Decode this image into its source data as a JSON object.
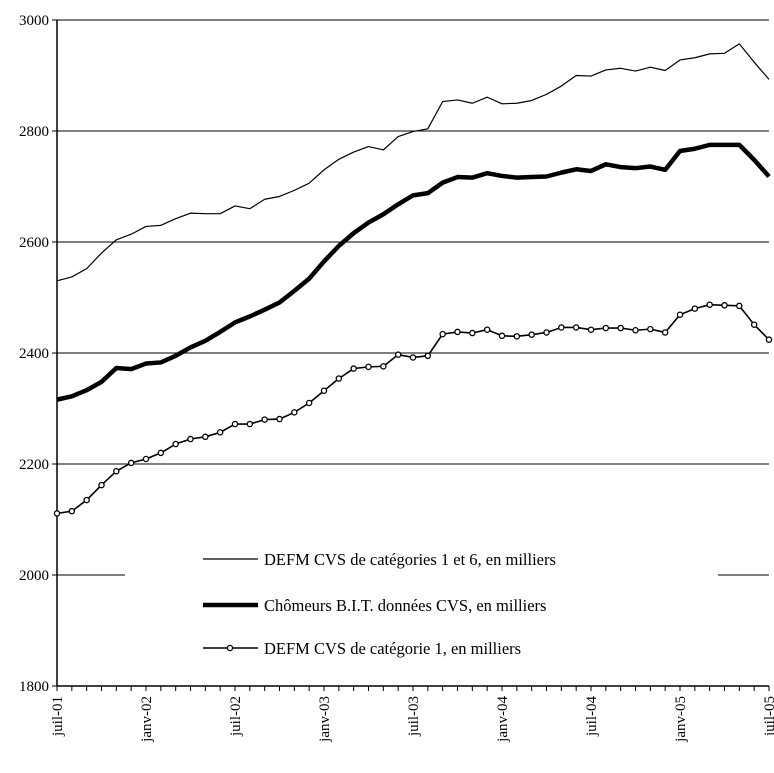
{
  "chart_data": {
    "type": "line",
    "title": "",
    "xlabel": "",
    "ylabel": "",
    "ylim": [
      1800,
      3000
    ],
    "yticks": [
      1800,
      2000,
      2200,
      2400,
      2600,
      2800,
      3000
    ],
    "grid": "horizontal",
    "legend_position": "lower-center",
    "x": [
      "2001-07",
      "2001-08",
      "2001-09",
      "2001-10",
      "2001-11",
      "2001-12",
      "2002-01",
      "2002-02",
      "2002-03",
      "2002-04",
      "2002-05",
      "2002-06",
      "2002-07",
      "2002-08",
      "2002-09",
      "2002-10",
      "2002-11",
      "2002-12",
      "2003-01",
      "2003-02",
      "2003-03",
      "2003-04",
      "2003-05",
      "2003-06",
      "2003-07",
      "2003-08",
      "2003-09",
      "2003-10",
      "2003-11",
      "2003-12",
      "2004-01",
      "2004-02",
      "2004-03",
      "2004-04",
      "2004-05",
      "2004-06",
      "2004-07",
      "2004-08",
      "2004-09",
      "2004-10",
      "2004-11",
      "2004-12",
      "2005-01",
      "2005-02",
      "2005-03",
      "2005-04",
      "2005-05",
      "2005-06",
      "2005-07"
    ],
    "x_tick_labels": [
      {
        "x": "2001-07",
        "label": "juil-01"
      },
      {
        "x": "2002-01",
        "label": "janv-02"
      },
      {
        "x": "2002-07",
        "label": "juil-02"
      },
      {
        "x": "2003-01",
        "label": "janv-03"
      },
      {
        "x": "2003-07",
        "label": "juil-03"
      },
      {
        "x": "2004-01",
        "label": "janv-04"
      },
      {
        "x": "2004-07",
        "label": "juil-04"
      },
      {
        "x": "2005-01",
        "label": "janv-05"
      },
      {
        "x": "2005-07",
        "label": "juil-05"
      }
    ],
    "series": [
      {
        "name": "DEFM CVS de catégories 1 et 6, en milliers",
        "style": "thin",
        "color": "#000000",
        "values": [
          2530,
          2537,
          2552,
          2580,
          2604,
          2614,
          2628,
          2630,
          2642,
          2652,
          2651,
          2651,
          2665,
          2660,
          2677,
          2682,
          2693,
          2706,
          2730,
          2749,
          2762,
          2772,
          2766,
          2790,
          2799,
          2804,
          2853,
          2856,
          2850,
          2861,
          2849,
          2850,
          2855,
          2866,
          2881,
          2900,
          2899,
          2910,
          2913,
          2908,
          2915,
          2909,
          2928,
          2932,
          2939,
          2940,
          2957,
          2924,
          2893
        ]
      },
      {
        "name": "Chômeurs B.I.T. données CVS, en milliers",
        "style": "thick",
        "color": "#000000",
        "values": [
          2316,
          2322,
          2333,
          2348,
          2373,
          2371,
          2381,
          2383,
          2395,
          2410,
          2422,
          2438,
          2455,
          2466,
          2478,
          2491,
          2512,
          2534,
          2565,
          2593,
          2616,
          2635,
          2650,
          2668,
          2684,
          2688,
          2707,
          2717,
          2716,
          2724,
          2719,
          2716,
          2717,
          2718,
          2725,
          2731,
          2728,
          2740,
          2735,
          2733,
          2736,
          2730,
          2764,
          2768,
          2775,
          2775,
          2775,
          2748,
          2718
        ]
      },
      {
        "name": "DEFM CVS de catégorie 1, en milliers",
        "style": "markers",
        "color": "#000000",
        "values": [
          2111,
          2115,
          2135,
          2162,
          2187,
          2202,
          2209,
          2220,
          2236,
          2245,
          2249,
          2257,
          2272,
          2272,
          2280,
          2281,
          2293,
          2310,
          2332,
          2354,
          2372,
          2375,
          2376,
          2397,
          2392,
          2395,
          2434,
          2438,
          2436,
          2442,
          2431,
          2430,
          2433,
          2437,
          2446,
          2446,
          2442,
          2445,
          2445,
          2441,
          2443,
          2437,
          2469,
          2480,
          2487,
          2486,
          2485,
          2451,
          2424
        ]
      }
    ]
  }
}
